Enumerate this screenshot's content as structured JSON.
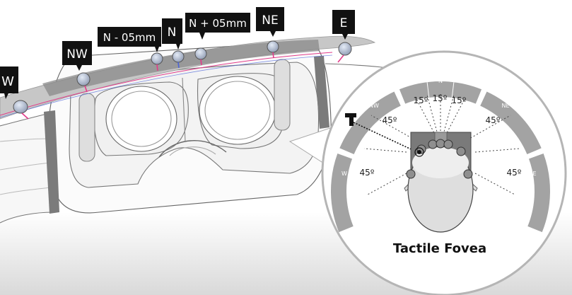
{
  "headset_labels": {
    "w": "W",
    "nw": "NW",
    "n_minus": "N - 05mm",
    "n": "N",
    "n_plus": "N + 05mm",
    "ne": "NE",
    "e": "E"
  },
  "inset": {
    "sectors": {
      "n": "N",
      "nw": "NW",
      "ne": "NE",
      "w": "W",
      "e": "E"
    },
    "angles": {
      "fine_left": "15º",
      "fine_center": "15º",
      "fine_right": "15º",
      "nw": "45º",
      "ne": "45º",
      "w": "45º",
      "e": "45º"
    },
    "marker": "T",
    "caption": "Tactile Fovea"
  },
  "colors": {
    "sector_gray": "#a3a3a3",
    "band_dark": "#8a8a8a",
    "actuator": "#b9c4d8",
    "wire_pink": "#e23b8a",
    "wire_blue": "#4a63d8",
    "label_bg": "#111111"
  }
}
